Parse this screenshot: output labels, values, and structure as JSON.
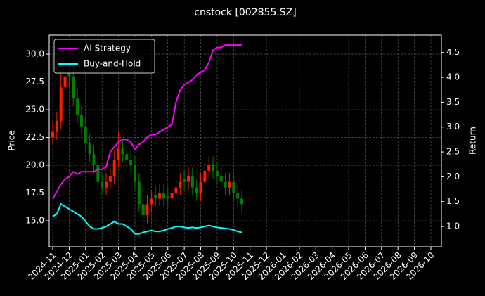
{
  "chart_data": {
    "type": "candlestick",
    "title": "cnstock [002855.SZ]",
    "y_label": "Price",
    "y2_label": "Return",
    "categories": [
      "2024-11",
      null,
      null,
      null,
      "2024-12",
      null,
      null,
      null,
      "2025-01",
      null,
      null,
      null,
      "2025-02",
      null,
      null,
      null,
      "2025-03",
      null,
      null,
      null,
      "2025-04",
      null,
      null,
      null,
      "2025-05",
      null,
      null,
      null,
      "2025-06",
      null,
      null,
      null,
      "2025-07",
      null,
      null,
      null,
      "2025-08",
      null,
      null,
      null,
      "2025-09",
      null,
      null,
      null,
      "2025-10",
      null,
      null,
      null,
      "2025-11",
      null,
      null,
      null,
      "2025-12",
      null,
      null,
      null,
      "2026-01",
      null,
      null,
      null,
      "2026-02",
      null,
      null,
      null,
      "2026-03",
      null,
      null,
      null,
      "2026-04",
      null,
      null,
      null,
      "2026-05",
      null,
      null,
      null,
      "2026-06",
      null,
      null,
      null,
      "2026-07",
      null,
      null,
      null,
      "2026-08",
      null,
      null,
      null,
      "2026-09",
      null,
      null,
      null,
      "2026-10"
    ],
    "open": [
      22.5,
      23,
      24,
      27,
      28.3,
      28,
      26,
      24.5,
      23.5,
      22,
      21,
      20,
      18.5,
      18,
      18.5,
      19,
      20.5,
      21.5,
      21,
      20.5,
      20,
      18.5,
      16.5,
      15.5,
      16.5,
      17.3,
      17,
      17.5,
      17.2,
      17,
      17.5,
      18,
      18.8,
      18.5,
      19,
      18,
      17.5,
      18.5,
      19.5,
      20,
      19.5,
      19,
      18.5,
      18,
      18.5,
      17.5,
      17,
      null,
      null,
      null,
      null,
      null,
      null,
      null,
      null,
      null,
      null,
      null,
      null,
      null,
      null,
      null,
      null,
      null,
      null,
      null,
      null,
      null,
      null,
      null,
      null,
      null,
      null,
      null,
      null,
      null,
      null,
      null,
      null,
      null,
      null,
      null,
      null,
      null,
      null,
      null,
      null,
      null,
      null,
      null,
      null,
      null,
      null
    ],
    "high": [
      24,
      24.8,
      28.5,
      30,
      29,
      28.8,
      27,
      25.3,
      24.3,
      22.8,
      21.8,
      20.8,
      19.3,
      19.3,
      19.8,
      21.3,
      23,
      22.3,
      21.8,
      21.3,
      20.8,
      19.3,
      17.3,
      17.3,
      17.8,
      18.1,
      18.3,
      18.3,
      18,
      18.3,
      18.8,
      19.3,
      19.6,
      19.8,
      19.8,
      18.8,
      19.3,
      20.3,
      20.8,
      20.8,
      20.3,
      19.8,
      19.3,
      19.3,
      19.3,
      18.3,
      17.8,
      null,
      null,
      null,
      null,
      null,
      null,
      null,
      null,
      null,
      null,
      null,
      null,
      null,
      null,
      null,
      null,
      null,
      null,
      null,
      null,
      null,
      null,
      null,
      null,
      null,
      null,
      null,
      null,
      null,
      null,
      null,
      null,
      null,
      null,
      null,
      null,
      null,
      null,
      null,
      null,
      null,
      null,
      null,
      null,
      null,
      null
    ],
    "low": [
      21.8,
      22.3,
      23.3,
      26.3,
      27,
      25.3,
      23.8,
      22.8,
      21.3,
      20.3,
      19.3,
      17.8,
      17.3,
      17.3,
      17.8,
      18.3,
      19.8,
      20.3,
      19.8,
      19.3,
      17.8,
      15.8,
      14.3,
      14.8,
      15.8,
      16.3,
      16.3,
      16.3,
      16.3,
      16.3,
      16.8,
      17.3,
      17.8,
      17.8,
      17.3,
      16.8,
      16.8,
      17.8,
      18.8,
      18.8,
      18.3,
      17.8,
      17.3,
      17.3,
      16.8,
      16.3,
      15.8,
      null,
      null,
      null,
      null,
      null,
      null,
      null,
      null,
      null,
      null,
      null,
      null,
      null,
      null,
      null,
      null,
      null,
      null,
      null,
      null,
      null,
      null,
      null,
      null,
      null,
      null,
      null,
      null,
      null,
      null,
      null,
      null,
      null,
      null,
      null,
      null,
      null,
      null,
      null,
      null,
      null,
      null,
      null,
      null,
      null,
      null
    ],
    "close": [
      23,
      24,
      27,
      28,
      28,
      26,
      24.5,
      23.5,
      22,
      21,
      20,
      18.5,
      18,
      18.5,
      19,
      20.5,
      21.5,
      21,
      20.5,
      20,
      18.5,
      16.5,
      15.5,
      16.5,
      17,
      17,
      17.5,
      17,
      17,
      17.5,
      18,
      18.5,
      18.5,
      19,
      18,
      17.5,
      18.5,
      19.5,
      20,
      19.5,
      19,
      18.5,
      18,
      18.5,
      17.5,
      17,
      16.5,
      null,
      null,
      null,
      null,
      null,
      null,
      null,
      null,
      null,
      null,
      null,
      null,
      null,
      null,
      null,
      null,
      null,
      null,
      null,
      null,
      null,
      null,
      null,
      null,
      null,
      null,
      null,
      null,
      null,
      null,
      null,
      null,
      null,
      null,
      null,
      null,
      null,
      null,
      null,
      null,
      null,
      null,
      null,
      null,
      null,
      null
    ],
    "up_color": "#ff1a00",
    "down_color": "#008000",
    "series": [
      {
        "name": "AI Strategy",
        "color": "#ff00ff",
        "axis": "y2",
        "values": [
          1.55,
          1.7,
          1.85,
          1.95,
          2.0,
          2.1,
          2.05,
          2.1,
          2.1,
          2.1,
          2.1,
          2.15,
          2.15,
          2.2,
          2.5,
          2.6,
          2.7,
          2.75,
          2.75,
          2.7,
          2.55,
          2.65,
          2.7,
          2.8,
          2.85,
          2.85,
          2.9,
          2.95,
          3.0,
          3.05,
          3.5,
          3.75,
          3.85,
          3.9,
          3.95,
          4.05,
          4.1,
          4.15,
          4.3,
          4.55,
          4.6,
          4.6,
          4.65,
          4.65,
          4.65,
          4.65,
          4.65,
          null,
          null,
          null,
          null,
          null,
          null,
          null,
          null,
          null,
          null,
          null,
          null,
          null,
          null,
          null,
          null,
          null,
          null,
          null,
          null,
          null,
          null,
          null,
          null,
          null,
          null,
          null,
          null,
          null,
          null,
          null,
          null,
          null,
          null,
          null,
          null,
          null,
          null,
          null,
          null,
          null,
          null,
          null,
          null,
          null,
          null
        ]
      },
      {
        "name": "Buy-and-Hold",
        "color": "#00ffff",
        "axis": "y2",
        "values": [
          1.2,
          1.25,
          1.45,
          1.4,
          1.35,
          1.3,
          1.25,
          1.2,
          1.1,
          1.0,
          0.95,
          0.95,
          0.97,
          1.0,
          1.05,
          1.1,
          1.05,
          1.05,
          1.0,
          0.95,
          0.85,
          0.85,
          0.88,
          0.9,
          0.92,
          0.9,
          0.9,
          0.92,
          0.95,
          0.97,
          1.0,
          1.0,
          0.98,
          0.97,
          0.98,
          0.97,
          0.98,
          1.0,
          1.02,
          1.0,
          0.98,
          0.97,
          0.96,
          0.95,
          0.93,
          0.9,
          0.88,
          null,
          null,
          null,
          null,
          null,
          null,
          null,
          null,
          null,
          null,
          null,
          null,
          null,
          null,
          null,
          null,
          null,
          null,
          null,
          null,
          null,
          null,
          null,
          null,
          null,
          null,
          null,
          null,
          null,
          null,
          null,
          null,
          null,
          null,
          null,
          null,
          null,
          null,
          null,
          null,
          null,
          null,
          null,
          null,
          null,
          null
        ]
      }
    ],
    "ylim": [
      12.66,
      31.71
    ],
    "yticks": [
      {
        "value": 15,
        "label": "15.0"
      },
      {
        "value": 17.5,
        "label": "17.5"
      },
      {
        "value": 20,
        "label": "20.0"
      },
      {
        "value": 22.5,
        "label": "22.5"
      },
      {
        "value": 25,
        "label": "25.0"
      },
      {
        "value": 27.5,
        "label": "27.5"
      },
      {
        "value": 30,
        "label": "30.0"
      }
    ],
    "y2lim": [
      0.59,
      4.85
    ],
    "y2ticks": [
      {
        "value": 1,
        "label": "1.0"
      },
      1.5,
      {
        "value": 2,
        "label": "2.0"
      },
      2.5,
      {
        "value": 3,
        "label": "3.0"
      },
      3.5,
      {
        "value": 4,
        "label": "4.0"
      },
      4.5
    ],
    "grid": true,
    "legend": "upper left"
  }
}
